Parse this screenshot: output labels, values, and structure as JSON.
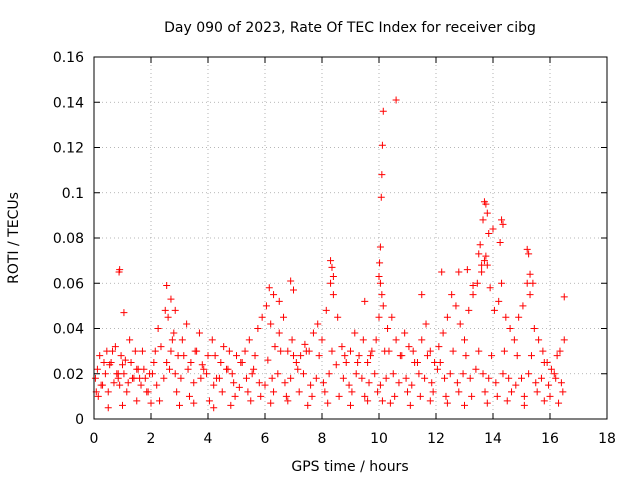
{
  "chart_data": {
    "type": "scatter",
    "title": "Day 090 of 2023, Rate Of TEC Index for receiver cibg",
    "xlabel": "GPS time / hours",
    "ylabel": "ROTI / TECUs",
    "xlim": [
      0,
      18
    ],
    "ylim": [
      0,
      0.16
    ],
    "xticks": [
      0,
      2,
      4,
      6,
      8,
      10,
      12,
      14,
      16,
      18
    ],
    "xtick_labels": [
      "0",
      "2",
      "4",
      "6",
      "8",
      "10",
      "12",
      "14",
      "16",
      "18"
    ],
    "yticks": [
      0,
      0.02,
      0.04,
      0.06,
      0.08,
      0.1,
      0.12,
      0.14,
      0.16
    ],
    "ytick_labels": [
      "0",
      "0.02",
      "0.04",
      "0.06",
      "0.08",
      "0.1",
      "0.12",
      "0.14",
      "0.16"
    ],
    "grid": true,
    "marker": "+",
    "series": [
      {
        "name": "ROTI",
        "color": "#ff0000",
        "x": [
          0.05,
          0.12,
          0.2,
          0.3,
          0.45,
          0.6,
          0.75,
          0.85,
          0.9,
          1.0,
          1.1,
          1.25,
          1.4,
          1.55,
          1.7,
          1.85,
          1.95,
          2.1,
          2.25,
          2.35,
          2.5,
          2.6,
          2.7,
          2.8,
          2.95,
          3.1,
          3.25,
          3.4,
          3.55,
          3.7,
          3.85,
          4.0,
          4.15,
          4.3,
          4.45,
          4.55,
          4.7,
          4.85,
          5.0,
          5.15,
          5.3,
          5.45,
          5.6,
          5.75,
          5.9,
          6.05,
          6.2,
          6.35,
          6.5,
          6.65,
          6.8,
          6.95,
          7.1,
          7.25,
          7.4,
          7.55,
          7.7,
          7.85,
          8.0,
          8.15,
          8.3,
          8.4,
          8.55,
          8.7,
          8.85,
          9.0,
          9.15,
          9.3,
          9.45,
          9.6,
          9.75,
          9.9,
          10.0,
          10.05,
          10.1,
          10.15,
          10.2,
          10.3,
          10.45,
          10.6,
          10.75,
          10.9,
          11.05,
          11.2,
          11.35,
          11.5,
          11.65,
          11.8,
          11.95,
          12.1,
          12.25,
          12.4,
          12.55,
          12.7,
          12.85,
          13.0,
          13.15,
          13.3,
          13.45,
          13.6,
          13.7,
          13.75,
          13.8,
          13.9,
          14.05,
          14.2,
          14.3,
          14.45,
          14.6,
          14.75,
          14.9,
          15.05,
          15.2,
          15.3,
          15.45,
          15.6,
          15.75,
          15.9,
          16.05,
          16.2,
          16.35,
          16.5,
          0.08,
          0.25,
          0.4,
          0.55,
          0.7,
          0.85,
          1.05,
          1.2,
          1.35,
          1.5,
          1.65,
          1.8,
          2.05,
          2.2,
          2.45,
          2.65,
          2.85,
          3.05,
          3.3,
          3.5,
          3.75,
          3.95,
          4.2,
          4.4,
          4.65,
          4.9,
          5.1,
          5.35,
          5.55,
          5.8,
          6.0,
          6.25,
          6.45,
          6.7,
          6.9,
          7.15,
          7.35,
          7.6,
          7.8,
          8.05,
          8.25,
          8.5,
          8.75,
          8.95,
          9.2,
          9.4,
          9.65,
          9.85,
          10.05,
          10.25,
          10.5,
          10.7,
          10.95,
          11.15,
          11.4,
          11.6,
          11.85,
          12.05,
          12.3,
          12.5,
          12.75,
          12.95,
          13.2,
          13.4,
          13.65,
          13.85,
          14.1,
          14.35,
          14.55,
          14.8,
          15.0,
          15.25,
          15.5,
          15.7,
          15.95,
          16.15,
          16.4,
          0.15,
          0.35,
          0.5,
          0.65,
          0.8,
          0.95,
          1.15,
          1.3,
          1.45,
          1.6,
          1.75,
          1.9,
          2.15,
          2.3,
          2.55,
          2.75,
          2.9,
          3.15,
          3.35,
          3.6,
          3.8,
          4.05,
          4.25,
          4.5,
          4.75,
          4.95,
          5.2,
          5.4,
          5.65,
          5.85,
          6.1,
          6.3,
          6.55,
          6.75,
          7.0,
          7.2,
          7.45,
          7.65,
          7.9,
          8.1,
          8.35,
          8.6,
          8.8,
          9.05,
          9.25,
          9.5,
          9.7,
          9.95,
          10.12,
          10.35,
          10.55,
          10.8,
          11.0,
          11.25,
          11.45,
          11.7,
          11.9,
          12.15,
          12.35,
          12.6,
          12.8,
          13.05,
          13.25,
          13.5,
          13.72,
          13.95,
          14.15,
          14.4,
          14.65,
          14.85,
          15.1,
          15.35,
          15.55,
          15.8,
          16.0,
          16.25,
          16.45,
          0.88,
          0.9,
          1.05,
          2.55,
          2.7,
          2.85,
          6.15,
          6.3,
          6.5,
          6.9,
          7.0,
          8.3,
          8.35,
          8.4,
          9.5,
          10.0,
          10.02,
          10.05,
          10.08,
          10.1,
          10.12,
          10.15,
          10.6,
          11.5,
          12.2,
          12.8,
          13.1,
          13.3,
          13.5,
          13.55,
          13.6,
          13.65,
          13.7,
          13.75,
          13.8,
          13.85,
          14.0,
          14.25,
          14.3,
          14.35,
          15.2,
          15.25,
          15.3,
          15.4,
          16.5,
          0.5,
          1.0,
          1.5,
          2.0,
          3.0,
          3.5,
          4.2,
          4.8,
          5.5,
          6.2,
          6.8,
          7.5,
          8.2,
          9.0,
          9.6,
          10.4,
          11.1,
          11.8,
          12.4,
          13.0,
          13.8,
          14.5,
          15.1,
          15.8,
          16.3
        ],
        "y": [
          0.018,
          0.022,
          0.028,
          0.015,
          0.03,
          0.025,
          0.032,
          0.02,
          0.015,
          0.024,
          0.026,
          0.035,
          0.018,
          0.022,
          0.03,
          0.012,
          0.02,
          0.025,
          0.04,
          0.032,
          0.048,
          0.045,
          0.03,
          0.038,
          0.028,
          0.035,
          0.042,
          0.025,
          0.03,
          0.038,
          0.022,
          0.028,
          0.035,
          0.018,
          0.025,
          0.032,
          0.022,
          0.02,
          0.028,
          0.025,
          0.03,
          0.035,
          0.022,
          0.04,
          0.045,
          0.05,
          0.042,
          0.032,
          0.038,
          0.045,
          0.03,
          0.035,
          0.025,
          0.028,
          0.033,
          0.03,
          0.038,
          0.042,
          0.035,
          0.048,
          0.06,
          0.055,
          0.045,
          0.032,
          0.025,
          0.03,
          0.038,
          0.028,
          0.035,
          0.025,
          0.03,
          0.035,
          0.045,
          0.06,
          0.055,
          0.05,
          0.03,
          0.04,
          0.045,
          0.035,
          0.028,
          0.038,
          0.032,
          0.03,
          0.025,
          0.035,
          0.042,
          0.03,
          0.025,
          0.032,
          0.038,
          0.045,
          0.055,
          0.05,
          0.042,
          0.035,
          0.048,
          0.055,
          0.06,
          0.065,
          0.07,
          0.072,
          0.068,
          0.058,
          0.048,
          0.052,
          0.06,
          0.045,
          0.04,
          0.035,
          0.045,
          0.05,
          0.06,
          0.055,
          0.04,
          0.035,
          0.03,
          0.025,
          0.022,
          0.018,
          0.03,
          0.035,
          0.012,
          0.015,
          0.02,
          0.024,
          0.016,
          0.018,
          0.02,
          0.016,
          0.018,
          0.022,
          0.015,
          0.018,
          0.02,
          0.015,
          0.018,
          0.022,
          0.02,
          0.018,
          0.022,
          0.016,
          0.018,
          0.02,
          0.015,
          0.018,
          0.022,
          0.016,
          0.014,
          0.018,
          0.02,
          0.016,
          0.015,
          0.018,
          0.02,
          0.016,
          0.018,
          0.022,
          0.02,
          0.015,
          0.018,
          0.016,
          0.02,
          0.024,
          0.018,
          0.015,
          0.02,
          0.018,
          0.016,
          0.02,
          0.015,
          0.018,
          0.02,
          0.016,
          0.018,
          0.015,
          0.02,
          0.018,
          0.016,
          0.022,
          0.018,
          0.02,
          0.016,
          0.02,
          0.018,
          0.022,
          0.02,
          0.018,
          0.016,
          0.02,
          0.018,
          0.015,
          0.018,
          0.02,
          0.016,
          0.018,
          0.015,
          0.02,
          0.016,
          0.01,
          0.025,
          0.012,
          0.03,
          0.02,
          0.028,
          0.012,
          0.025,
          0.03,
          0.018,
          0.022,
          0.012,
          0.03,
          0.008,
          0.025,
          0.035,
          0.012,
          0.028,
          0.01,
          0.03,
          0.024,
          0.008,
          0.028,
          0.012,
          0.03,
          0.01,
          0.025,
          0.012,
          0.028,
          0.01,
          0.026,
          0.012,
          0.03,
          0.01,
          0.028,
          0.012,
          0.03,
          0.01,
          0.028,
          0.012,
          0.03,
          0.01,
          0.028,
          0.012,
          0.025,
          0.01,
          0.028,
          0.012,
          0.008,
          0.03,
          0.01,
          0.028,
          0.012,
          0.025,
          0.01,
          0.028,
          0.012,
          0.025,
          0.01,
          0.03,
          0.012,
          0.028,
          0.01,
          0.03,
          0.012,
          0.028,
          0.01,
          0.03,
          0.012,
          0.028,
          0.01,
          0.028,
          0.012,
          0.025,
          0.01,
          0.028,
          0.012,
          0.065,
          0.066,
          0.047,
          0.059,
          0.053,
          0.048,
          0.058,
          0.055,
          0.052,
          0.061,
          0.057,
          0.07,
          0.067,
          0.063,
          0.052,
          0.063,
          0.069,
          0.076,
          0.098,
          0.108,
          0.121,
          0.136,
          0.141,
          0.055,
          0.065,
          0.065,
          0.066,
          0.059,
          0.073,
          0.077,
          0.068,
          0.088,
          0.096,
          0.095,
          0.091,
          0.082,
          0.084,
          0.078,
          0.088,
          0.086,
          0.075,
          0.073,
          0.064,
          0.06,
          0.054,
          0.005,
          0.006,
          0.008,
          0.007,
          0.006,
          0.007,
          0.005,
          0.006,
          0.008,
          0.007,
          0.008,
          0.006,
          0.007,
          0.006,
          0.008,
          0.007,
          0.006,
          0.008,
          0.007,
          0.006,
          0.007,
          0.008,
          0.006,
          0.008,
          0.007
        ]
      }
    ]
  }
}
